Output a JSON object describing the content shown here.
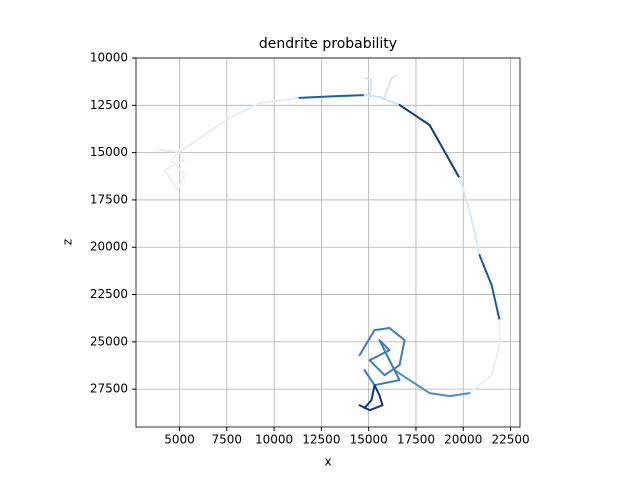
{
  "chart_data": {
    "type": "line",
    "title": "dendrite probability",
    "x_label": "x",
    "y_label": "z",
    "xlim": [
      2700,
      23000
    ],
    "ylim": [
      29500,
      10000
    ],
    "xticks": [
      5000,
      7500,
      10000,
      12500,
      15000,
      17500,
      20000,
      22500
    ],
    "yticks": [
      10000,
      12500,
      15000,
      17500,
      20000,
      22500,
      25000,
      27500
    ],
    "grid": true,
    "series": [
      {
        "color": "#e3eef9",
        "x": [
          3940,
          5000,
          6320,
          7640,
          9230,
          11340
        ],
        "values": [
          14860,
          14970,
          14070,
          13170,
          12380,
          12110
        ]
      },
      {
        "color": "#1f5fa8",
        "x": [
          11340,
          13460,
          14780
        ],
        "values": [
          12110,
          12010,
          11960
        ]
      },
      {
        "color": "#d0e1f2",
        "x": [
          14780,
          15570,
          16630
        ],
        "values": [
          11960,
          12060,
          12480
        ]
      },
      {
        "color": "#0d3f7a",
        "x": [
          16630,
          18220,
          19800
        ],
        "values": [
          12480,
          13540,
          16340
        ]
      },
      {
        "color": "#dbe9f6",
        "x": [
          19800,
          20330,
          20860
        ],
        "values": [
          16340,
          18040,
          20420
        ]
      },
      {
        "color": "#1b5aa3",
        "x": [
          20860,
          21500,
          21920
        ],
        "values": [
          20420,
          22000,
          23850
        ]
      },
      {
        "color": "#e6f0fa",
        "x": [
          21920,
          21920,
          21500,
          20330
        ],
        "values": [
          23850,
          25170,
          26760,
          27710
        ]
      },
      {
        "color": "#4a90c6",
        "x": [
          20330,
          19270,
          18220,
          17160,
          16370
        ],
        "values": [
          27710,
          27870,
          27710,
          27020,
          26500
        ]
      },
      {
        "color": "#3a7dbb",
        "x": [
          14520,
          15310,
          16100,
          16900,
          16630,
          15840,
          15050,
          16100,
          15570,
          16630,
          15310,
          14780
        ],
        "values": [
          25700,
          24380,
          24270,
          24910,
          26230,
          26760,
          25970,
          25440,
          24910,
          27020,
          27290,
          26500
        ]
      },
      {
        "color": "#0b3a75",
        "x": [
          14780,
          15150,
          15310,
          15570,
          15730,
          15050,
          14520
        ],
        "values": [
          28500,
          28080,
          27290,
          27820,
          28350,
          28610,
          28350
        ]
      },
      {
        "color": "#e8f1fa",
        "x": [
          5000,
          4580,
          5260,
          4890,
          4210,
          5260
        ],
        "values": [
          14860,
          15390,
          16190,
          16980,
          15920,
          15390
        ]
      },
      {
        "color": "#d6e6f4",
        "x": [
          15050,
          15150,
          14830
        ],
        "values": [
          12060,
          11160,
          11060
        ]
      },
      {
        "color": "#d6e6f4",
        "x": [
          15840,
          16210,
          16420
        ],
        "values": [
          12060,
          11060,
          10950
        ]
      }
    ]
  }
}
